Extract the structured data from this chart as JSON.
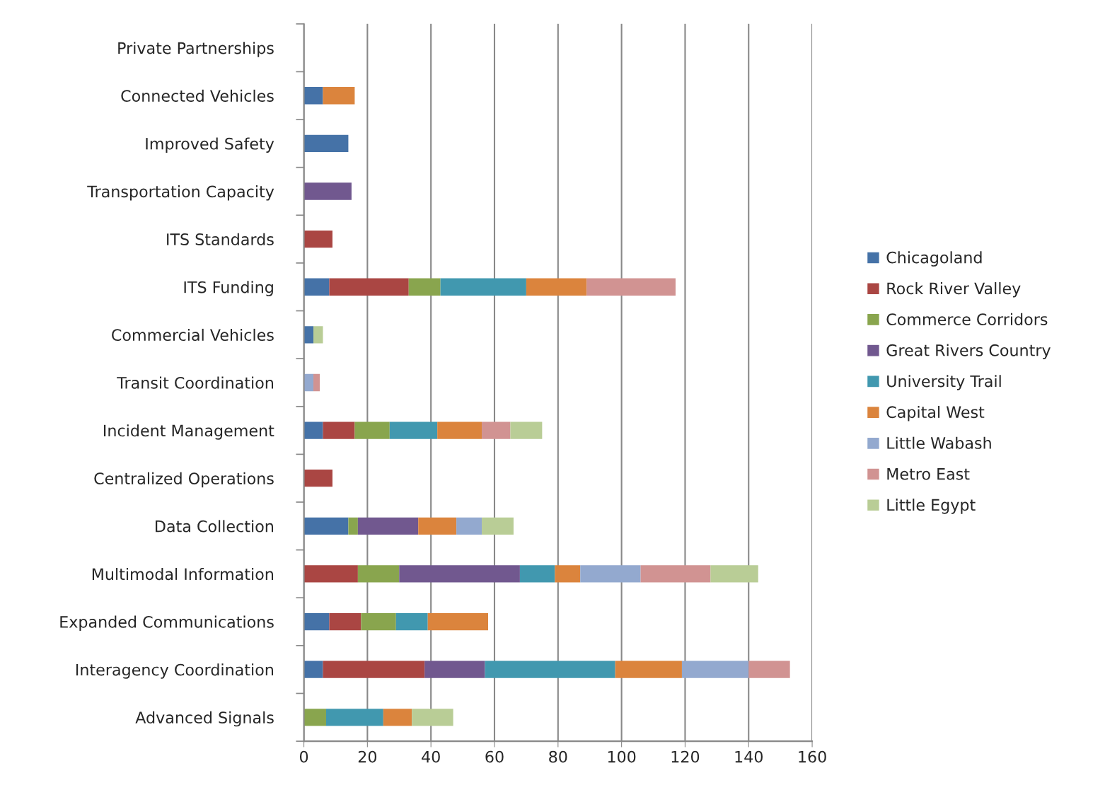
{
  "chart_data": {
    "type": "bar",
    "orientation": "horizontal",
    "stacked": true,
    "categories": [
      "Private Partnerships",
      "Connected Vehicles",
      "Improved Safety",
      "Transportation Capacity",
      "ITS Standards",
      "ITS Funding",
      "Commercial Vehicles",
      "Transit Coordination",
      "Incident Management",
      "Centralized Operations",
      "Data Collection",
      "Multimodal Information",
      "Expanded Communications",
      "Interagency Coordination",
      "Advanced Signals"
    ],
    "series": [
      {
        "name": "Chicagoland",
        "color": "#4572a7",
        "values": [
          null,
          6,
          14,
          null,
          null,
          8,
          3,
          null,
          6,
          null,
          14,
          null,
          8,
          6,
          null
        ]
      },
      {
        "name": "Rock River Valley",
        "color": "#aa4643",
        "values": [
          null,
          null,
          null,
          null,
          9,
          25,
          null,
          null,
          10,
          9,
          null,
          17,
          10,
          32,
          null
        ]
      },
      {
        "name": "Commerce Corridors",
        "color": "#89a54e",
        "values": [
          null,
          null,
          null,
          null,
          null,
          10,
          null,
          null,
          11,
          null,
          3,
          13,
          11,
          null,
          7
        ]
      },
      {
        "name": "Great Rivers Country",
        "color": "#71588f",
        "values": [
          null,
          null,
          null,
          15,
          null,
          null,
          null,
          null,
          null,
          null,
          19,
          38,
          null,
          19,
          null
        ]
      },
      {
        "name": "University Trail",
        "color": "#4198af",
        "values": [
          null,
          null,
          null,
          null,
          null,
          27,
          null,
          null,
          15,
          null,
          null,
          11,
          10,
          41,
          18
        ]
      },
      {
        "name": "Capital West",
        "color": "#db843d",
        "values": [
          null,
          10,
          null,
          null,
          null,
          19,
          null,
          null,
          14,
          null,
          12,
          8,
          19,
          21,
          9
        ]
      },
      {
        "name": "Little Wabash",
        "color": "#93a9cf",
        "values": [
          null,
          null,
          null,
          null,
          null,
          null,
          null,
          3,
          null,
          null,
          8,
          19,
          null,
          21,
          null
        ]
      },
      {
        "name": "Metro East",
        "color": "#d19392",
        "values": [
          null,
          null,
          null,
          null,
          null,
          28,
          null,
          2,
          9,
          null,
          null,
          22,
          null,
          13,
          null
        ]
      },
      {
        "name": "Little Egypt",
        "color": "#b9cd96",
        "values": [
          null,
          null,
          null,
          null,
          null,
          null,
          3,
          null,
          10,
          null,
          10,
          15,
          null,
          null,
          13
        ]
      }
    ],
    "xlim": [
      0,
      160
    ],
    "xticks": [
      0,
      20,
      40,
      60,
      80,
      100,
      120,
      140,
      160
    ],
    "grid": "x",
    "legend": "right"
  }
}
